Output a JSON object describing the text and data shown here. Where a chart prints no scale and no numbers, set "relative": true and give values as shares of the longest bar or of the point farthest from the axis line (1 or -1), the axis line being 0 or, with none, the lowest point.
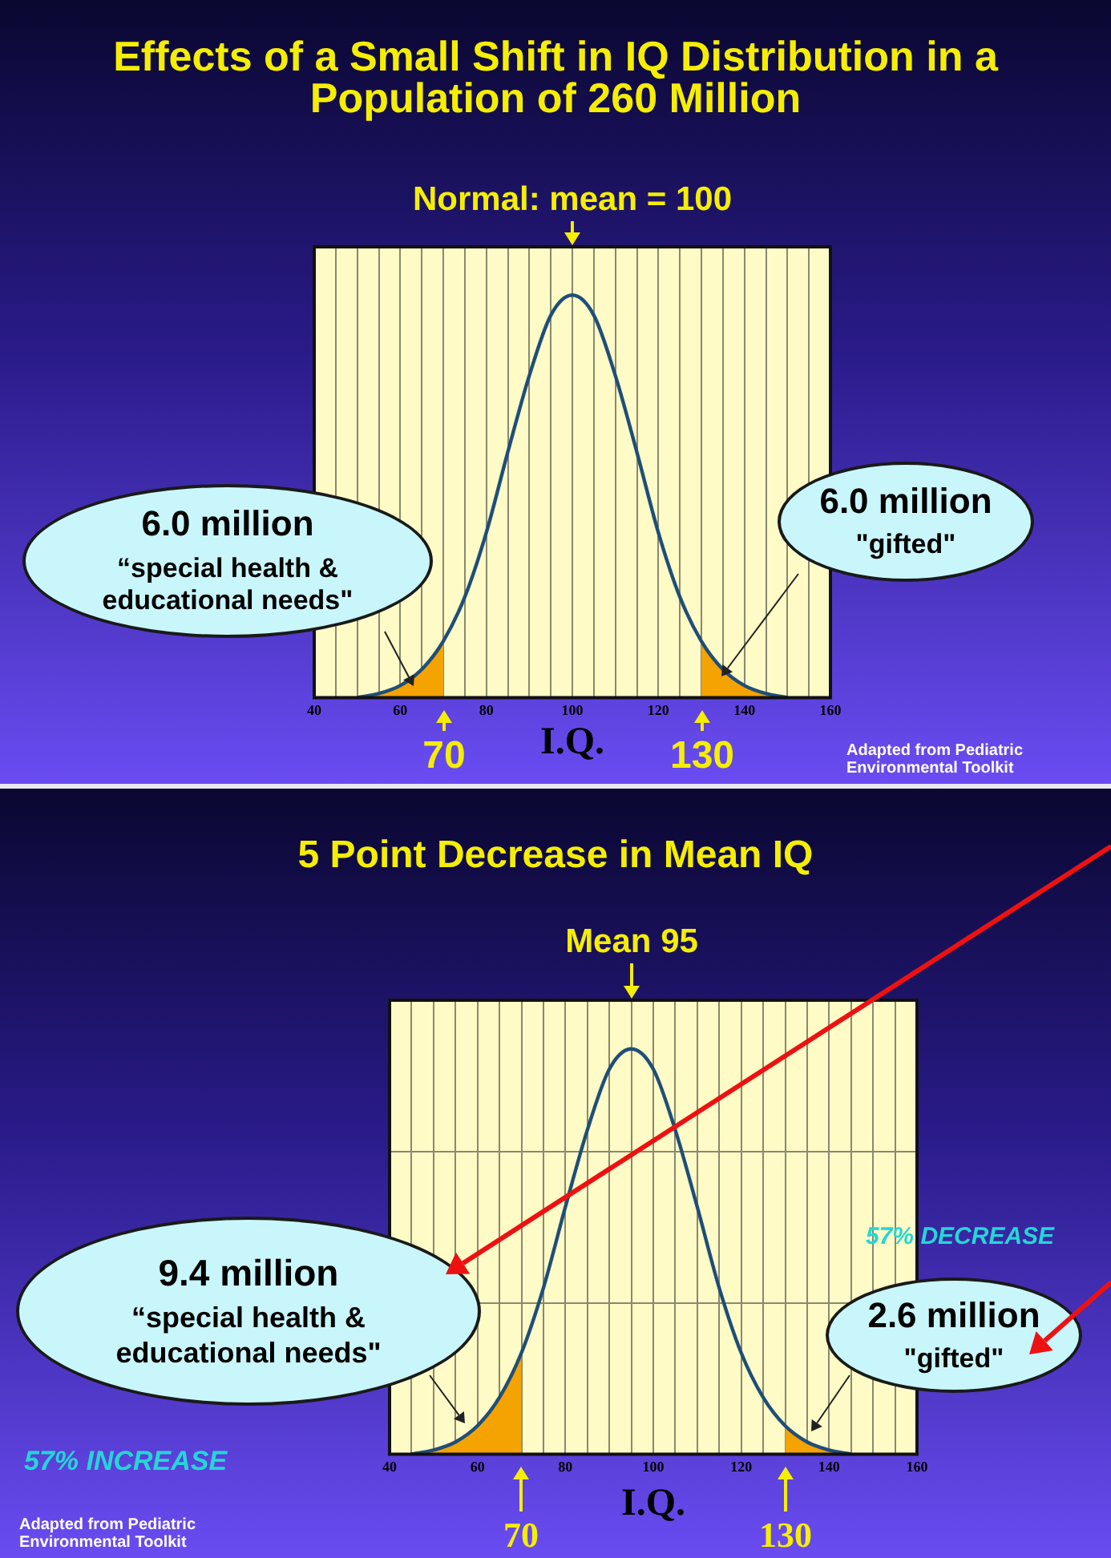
{
  "chart_data": [
    {
      "type": "line",
      "relative": true,
      "title": "Effects of a Small Shift in IQ Distribution in a Population of 260 Million",
      "xlabel": "I.Q.",
      "xlim": [
        40,
        160
      ],
      "xticks": [
        40,
        {
          "value": 45,
          "label": null
        },
        {
          "value": 50,
          "label": null
        },
        {
          "value": 55,
          "label": null
        },
        60,
        {
          "value": 65,
          "label": null
        },
        {
          "value": 70,
          "label": null
        },
        {
          "value": 75,
          "label": null
        },
        80,
        {
          "value": 85,
          "label": null
        },
        {
          "value": 90,
          "label": null
        },
        {
          "value": 95,
          "label": null
        },
        100,
        {
          "value": 105,
          "label": null
        },
        {
          "value": 110,
          "label": null
        },
        {
          "value": 115,
          "label": null
        },
        120,
        {
          "value": 125,
          "label": null
        },
        {
          "value": 130,
          "label": null
        },
        {
          "value": 135,
          "label": null
        },
        140,
        {
          "value": 145,
          "label": null
        },
        {
          "value": 150,
          "label": null
        },
        {
          "value": 155,
          "label": null
        },
        160
      ],
      "grid": "x",
      "series": [
        {
          "color": "#1f4e79",
          "x": [
            50,
            55,
            60,
            65,
            70,
            75,
            80,
            85,
            90,
            95,
            100,
            105,
            110,
            115,
            120,
            125,
            130,
            135,
            140,
            145,
            150
          ],
          "values": [
            0,
            0.01,
            0.03,
            0.07,
            0.14,
            0.25,
            0.41,
            0.61,
            0.8,
            0.95,
            1,
            0.95,
            0.8,
            0.61,
            0.41,
            0.25,
            0.14,
            0.07,
            0.03,
            0.01,
            0
          ]
        },
        {
          "type": "area",
          "color": "#f5a300",
          "x": [
            50,
            55,
            60,
            65,
            70
          ],
          "values": [
            0,
            0.01,
            0.03,
            0.07,
            0.14
          ]
        },
        {
          "type": "area",
          "color": "#f5a300",
          "x": [
            130,
            135,
            140,
            145,
            150
          ],
          "values": [
            0.14,
            0.07,
            0.03,
            0.01,
            0
          ]
        }
      ],
      "annotations": [
        "Normal: mean = 100",
        "70",
        "130",
        "6.0 million",
        "“special health & educational needs\"",
        "6.0 million",
        "\"gifted\"",
        "Adapted from Pediatric Environmental Toolkit"
      ]
    },
    {
      "type": "line",
      "relative": true,
      "title": "5 Point Decrease in Mean IQ",
      "xlabel": "I.Q.",
      "xlim": [
        40,
        160
      ],
      "xticks": [
        40,
        {
          "value": 45,
          "label": null
        },
        {
          "value": 50,
          "label": null
        },
        {
          "value": 55,
          "label": null
        },
        60,
        {
          "value": 65,
          "label": null
        },
        {
          "value": 70,
          "label": null
        },
        {
          "value": 75,
          "label": null
        },
        80,
        {
          "value": 85,
          "label": null
        },
        {
          "value": 90,
          "label": null
        },
        {
          "value": 95,
          "label": null
        },
        100,
        {
          "value": 105,
          "label": null
        },
        {
          "value": 110,
          "label": null
        },
        {
          "value": 115,
          "label": null
        },
        120,
        {
          "value": 125,
          "label": null
        },
        {
          "value": 130,
          "label": null
        },
        {
          "value": 135,
          "label": null
        },
        140,
        {
          "value": 145,
          "label": null
        },
        {
          "value": 150,
          "label": null
        },
        {
          "value": 155,
          "label": null
        },
        160
      ],
      "grid": true,
      "series": [
        {
          "color": "#1f4e79",
          "x": [
            45,
            50,
            55,
            60,
            65,
            70,
            75,
            80,
            85,
            90,
            95,
            100,
            105,
            110,
            115,
            120,
            125,
            130,
            135,
            140,
            145
          ],
          "values": [
            0,
            0.01,
            0.03,
            0.07,
            0.14,
            0.25,
            0.41,
            0.61,
            0.8,
            0.95,
            1,
            0.95,
            0.8,
            0.61,
            0.41,
            0.25,
            0.14,
            0.07,
            0.03,
            0.01,
            0
          ]
        },
        {
          "type": "area",
          "color": "#f5a300",
          "x": [
            45,
            50,
            55,
            60,
            65,
            70
          ],
          "values": [
            0,
            0.01,
            0.03,
            0.07,
            0.14,
            0.25
          ]
        },
        {
          "type": "area",
          "color": "#f5a300",
          "x": [
            130,
            135,
            140,
            145
          ],
          "values": [
            0.07,
            0.03,
            0.01,
            0
          ]
        }
      ],
      "annotations": [
        "Mean 95",
        "70",
        "130",
        "9.4 million",
        "“special health & educational needs\"",
        "2.6 million",
        "\"gifted\"",
        "57% INCREASE",
        "57% DECREASE",
        "Adapted from Pediatric Environmental Toolkit"
      ]
    }
  ]
}
